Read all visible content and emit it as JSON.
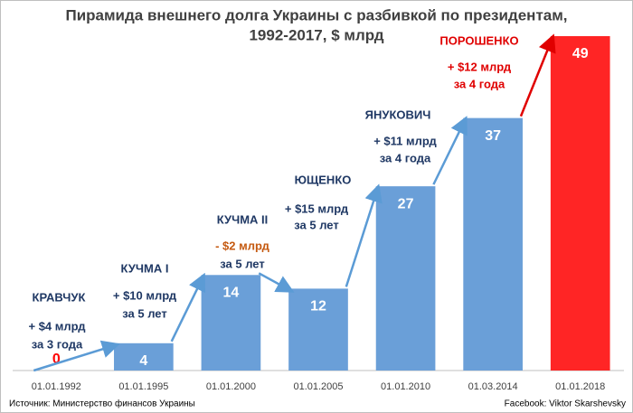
{
  "chart_data": {
    "type": "bar",
    "title": [
      "Пирамида внешнего долга Украины с разбивкой по президентам,",
      "1992-2017, $ млрд"
    ],
    "categories": [
      "01.01.1992",
      "01.01.1995",
      "01.01.2000",
      "01.01.2005",
      "01.01.2010",
      "01.03.2014",
      "01.01.2018"
    ],
    "values": [
      0,
      4,
      14,
      12,
      27,
      37,
      49
    ],
    "colors": [
      "#6a9fd8",
      "#6a9fd8",
      "#6a9fd8",
      "#6a9fd8",
      "#6a9fd8",
      "#6a9fd8",
      "#ff2525"
    ],
    "annotations": [
      "КРАВЧУК",
      "+ $4 млрд",
      "за 3 года",
      "КУЧМА I",
      "+ $10 млрд",
      "за 5 лет",
      "КУЧМА II",
      "- $2 млрд",
      "за 5 лет",
      "ЮЩЕНКО",
      "+ $15 млрд",
      "за 5 лет",
      "ЯНУКОВИЧ",
      "+ $11 млрд",
      "за 4 года",
      "ПОРОШЕНКО",
      "+ $12 млрд",
      "за 4 года"
    ],
    "source": "Источник: Министерство финансов Украины",
    "credit": "Facebook: Viktor Skarshevsky"
  }
}
